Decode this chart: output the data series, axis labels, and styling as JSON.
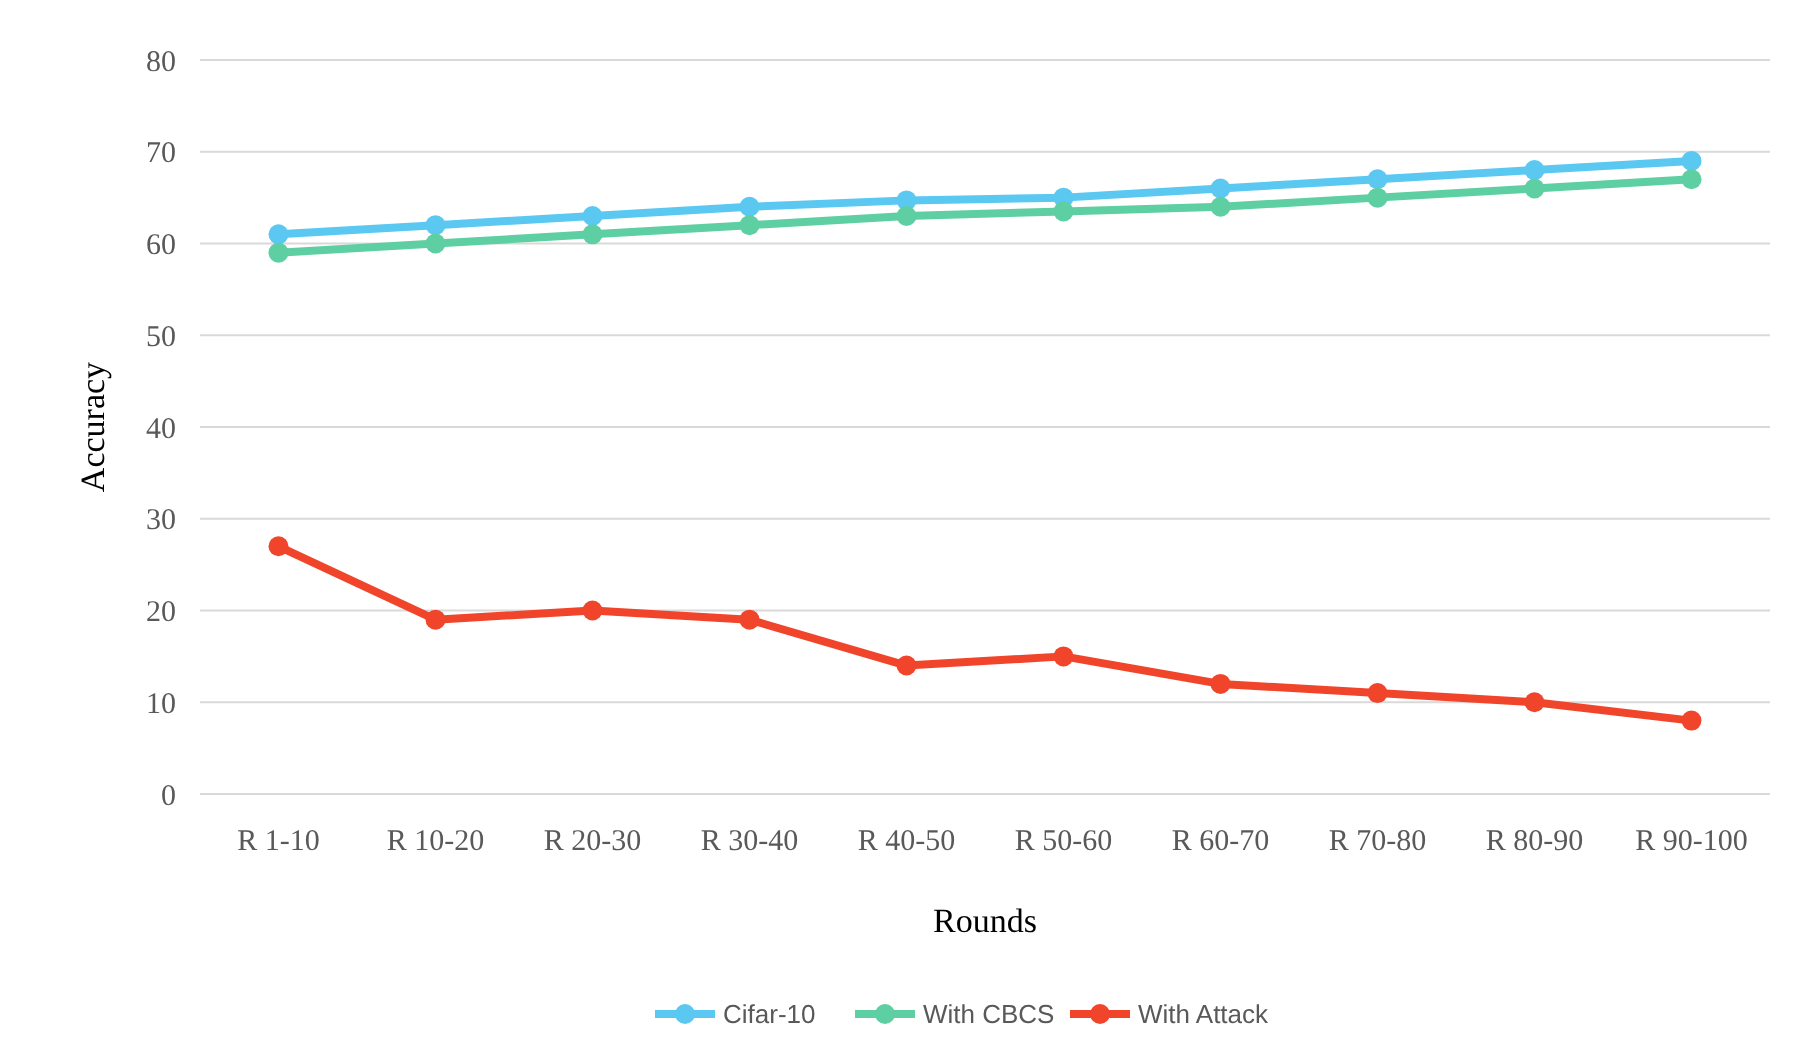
{
  "chart_data": {
    "type": "line",
    "xlabel": "Rounds",
    "ylabel": "Accuracy",
    "categories": [
      "R 1-10",
      "R 10-20",
      "R 20-30",
      "R 30-40",
      "R 40-50",
      "R 50-60",
      "R 60-70",
      "R 70-80",
      "R 80-90",
      "R 90-100"
    ],
    "series": [
      {
        "name": "Cifar-10",
        "color": "#5bc8f2",
        "values": [
          61,
          62,
          63,
          64,
          64.7,
          65,
          66,
          67,
          68,
          69
        ]
      },
      {
        "name": "With CBCS",
        "color": "#5ecfa2",
        "values": [
          59,
          60,
          61,
          62,
          63,
          63.5,
          64,
          65,
          66,
          67
        ]
      },
      {
        "name": "With Attack",
        "color": "#f1452b",
        "values": [
          27,
          19,
          20,
          19,
          14,
          15,
          12,
          11,
          10,
          8
        ]
      }
    ],
    "ylim": [
      0,
      80
    ],
    "yticks": [
      0,
      10,
      20,
      30,
      40,
      50,
      60,
      70,
      80
    ],
    "grid": "y",
    "legend": "bottom",
    "marker": "circle",
    "line_style": "solid"
  }
}
